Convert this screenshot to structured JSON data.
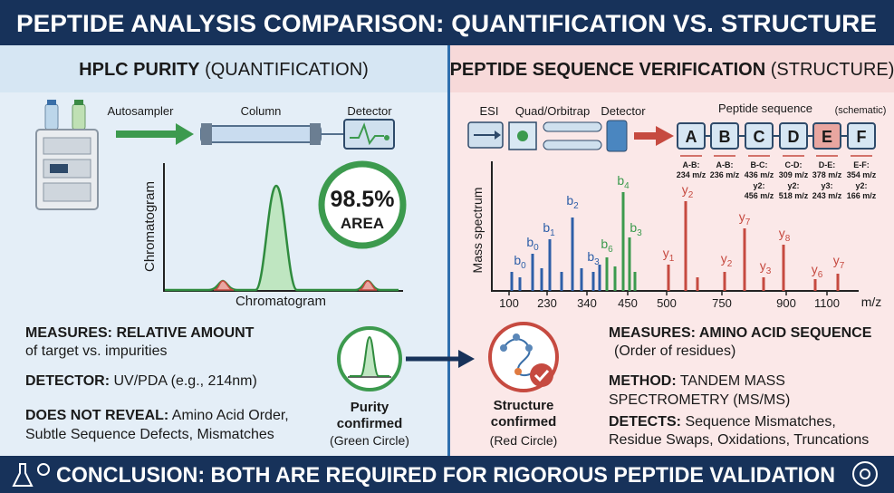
{
  "header": {
    "title": "PEPTIDE ANALYSIS COMPARISON: QUANTIFICATION VS. STRUCTURE"
  },
  "left_panel": {
    "title": {
      "bold": "HPLC PURITY",
      "normal": "(QUANTIFICATION)"
    },
    "instrument_labels": [
      "Autosampler",
      "Column",
      "Detector"
    ],
    "chromatogram": {
      "y_label": "Chromatogram",
      "x_label": "Chromatogram",
      "badge_value": "98.5%",
      "badge_label": "AREA"
    },
    "notes": [
      {
        "bold": "MEASURES: RELATIVE AMOUNT",
        "lines": [
          "of target vs. impurities"
        ]
      },
      {
        "bold": "DETECTOR:",
        "lines": [
          "UV/PDA (e.g., 214nm)"
        ]
      },
      {
        "bold": "DOES NOT REVEAL:",
        "lines": [
          "Amino Acid Order,",
          "Subtle Sequence Defects, Mismatches"
        ]
      }
    ]
  },
  "middle": {
    "purity": {
      "title": [
        "Purity",
        "confirmed"
      ],
      "note": "(Green Circle)"
    },
    "structure": {
      "title": [
        "Structure",
        "confirmed"
      ],
      "note": "(Red Circle)"
    }
  },
  "right_panel": {
    "title": {
      "bold": "PEPTIDE SEQUENCE VERIFICATION",
      "normal": "(STRUCTURE)"
    },
    "instrument_labels": [
      "ESI",
      "Quad/Orbitrap",
      "Detector"
    ],
    "sequence_label": "Peptide sequence",
    "sequence_note": "(schematic)",
    "residues": [
      "A",
      "B",
      "C",
      "D",
      "E",
      "F"
    ],
    "fragments": [
      {
        "ion": "A-B:",
        "mz": "234 m/z"
      },
      {
        "ion": "A-B:",
        "mz": "236 m/z"
      },
      {
        "ion": "B-C:",
        "mz": "436 m/z"
      },
      {
        "ion": "C-D:",
        "mz": "309 m/z"
      },
      {
        "ion": "D-E:",
        "mz": "378 m/z"
      },
      {
        "ion": "E-F:",
        "mz": "354 m/z"
      }
    ],
    "fragments_y": [
      {
        "ion": "y2:",
        "mz": "456 m/z"
      },
      {
        "ion": "y2:",
        "mz": "518 m/z"
      },
      {
        "ion": "y3:",
        "mz": "243 m/z"
      },
      {
        "ion": "y2:",
        "mz": "166 m/z"
      }
    ],
    "spectrum": {
      "y_label": "Mass spectrum",
      "x_ticks": [
        100,
        230,
        340,
        450,
        500,
        750,
        900,
        1100
      ],
      "x_unit": "m/z",
      "peak_labels": [
        {
          "ion": "b",
          "n": "0"
        },
        {
          "ion": "b",
          "n": "0"
        },
        {
          "ion": "b",
          "n": "1"
        },
        {
          "ion": "b",
          "n": "2"
        },
        {
          "ion": "b",
          "n": "3"
        },
        {
          "ion": "b",
          "n": "6"
        },
        {
          "ion": "b",
          "n": "4"
        },
        {
          "ion": "b",
          "n": "3"
        },
        {
          "ion": "y",
          "n": "1"
        },
        {
          "ion": "y",
          "n": "2"
        },
        {
          "ion": "y",
          "n": "7"
        },
        {
          "ion": "y",
          "n": "2"
        },
        {
          "ion": "y",
          "n": "3"
        },
        {
          "ion": "y",
          "n": "8"
        },
        {
          "ion": "y",
          "n": "6"
        },
        {
          "ion": "y",
          "n": "7"
        }
      ]
    },
    "notes": [
      {
        "bold": "MEASURES: AMINO ACID SEQUENCE",
        "lines": [
          "(Order of residues)"
        ]
      },
      {
        "bold": "METHOD:",
        "lines": [
          "TANDEM MASS",
          "SPECTROMETRY (MS/MS)"
        ]
      },
      {
        "bold": "DETECTS:",
        "lines": [
          "Sequence Mismatches,",
          "Residue Swaps, Oxidations, Truncations"
        ]
      }
    ]
  },
  "footer": {
    "conclusion": "CONCLUSION: BOTH ARE REQUIRED FOR RIGOROUS PEPTIDE VALIDATION"
  }
}
